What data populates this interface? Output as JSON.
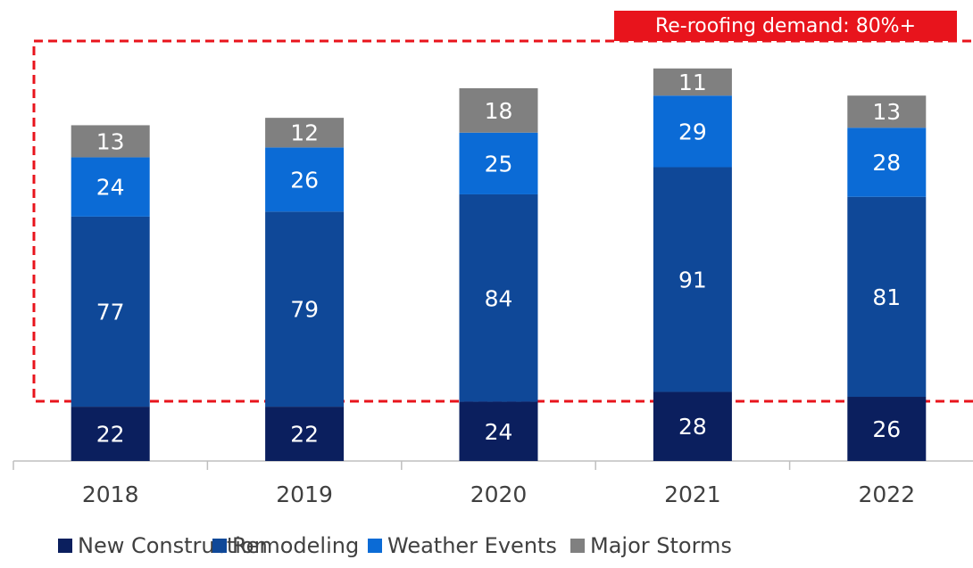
{
  "chart_data": {
    "type": "stacked_bar",
    "annotation": "Re-roofing demand: 80%+",
    "categories": [
      "2018",
      "2019",
      "2020",
      "2021",
      "2022"
    ],
    "series": [
      {
        "name": "New Construction",
        "color": "#0b1f5e",
        "values": [
          22,
          22,
          24,
          28,
          26
        ]
      },
      {
        "name": "Remodeling",
        "color": "#0f4898",
        "values": [
          77,
          79,
          84,
          91,
          81
        ]
      },
      {
        "name": "Weather Events",
        "color": "#0b6bd6",
        "values": [
          24,
          26,
          25,
          29,
          28
        ]
      },
      {
        "name": "Major Storms",
        "color": "#808080",
        "values": [
          13,
          12,
          18,
          11,
          13
        ]
      }
    ],
    "ylim": [
      0,
      186
    ]
  }
}
